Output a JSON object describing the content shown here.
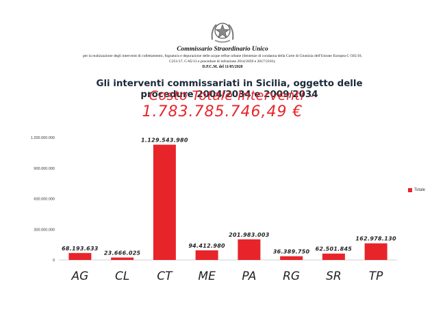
{
  "header": {
    "org_title": "Commissario Straordinario Unico",
    "org_desc": "per la realizzazione degli interventi di collettamento, fognatura e depurazione delle acque reflue urbane (Sentenze di condanna della Corte di Giustizia dell'Unione Europea C-565/10, C251/17, C-85/13 e procedure di infrazione 2014/2059 e 2017/2181).",
    "decree": "D.P.C.M. del 11/05/2020"
  },
  "overlay": {
    "line1": "Costo Totale Interventi  -",
    "line2": "1.783.785.746,49 €"
  },
  "colors": {
    "bar": "#e8242b",
    "overlay": "#e8242b"
  },
  "icons": {
    "emblem": "italian-republic-emblem"
  },
  "chart_data": {
    "type": "bar",
    "title": "Gli interventi commissariati in Sicilia, oggetto delle procedure 2004/2034 e 2009/2034",
    "categories": [
      "AG",
      "CL",
      "CT",
      "ME",
      "PA",
      "RG",
      "SR",
      "TP"
    ],
    "series": [
      {
        "name": "Totale",
        "values": [
          68193633,
          23666025,
          1129543980,
          94412980,
          201983003,
          36389750,
          62501845,
          162978130
        ],
        "labels": [
          "68.193.633",
          "23.666.025",
          "1.129.543.980",
          "94.412.980",
          "201.983.003",
          "36.389.750",
          "62.501.845",
          "162.978.130"
        ]
      }
    ],
    "ylim": [
      0,
      1200000000
    ],
    "yticks": [
      0,
      300000000,
      600000000,
      900000000,
      1200000000
    ],
    "ytick_labels": [
      "0",
      "300.000.000",
      "600.000.000",
      "900.000.000",
      "1.200.000.000"
    ],
    "grid": false,
    "legend": "right"
  }
}
